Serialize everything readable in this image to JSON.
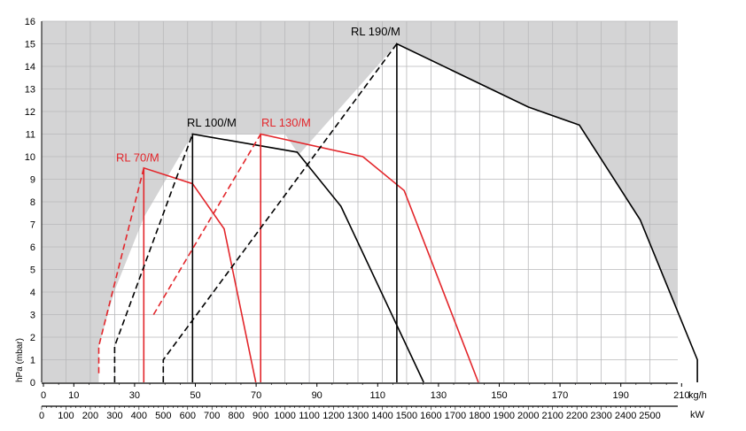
{
  "chart_data": {
    "type": "line",
    "ylabel": "hPa (mbar)",
    "y_ticks": [
      "0",
      "1",
      "2",
      "3",
      "4",
      "5",
      "6",
      "7",
      "8",
      "9",
      "10",
      "11",
      "12",
      "13",
      "14",
      "15",
      "16"
    ],
    "ylim": [
      0,
      16
    ],
    "x_top_unit": "kg/h",
    "x_top_ticks": [
      "0",
      "10",
      "30",
      "50",
      "70",
      "90",
      "110",
      "130",
      "150",
      "170",
      "190",
      "210"
    ],
    "x_bottom_unit": "kW",
    "x_bottom_ticks": [
      "0",
      "100",
      "200",
      "300",
      "400",
      "500",
      "600",
      "700",
      "800",
      "900",
      "1000",
      "1100",
      "1200",
      "1300",
      "1400",
      "1500",
      "1600",
      "1700",
      "1800",
      "1900",
      "2000",
      "2100",
      "2200",
      "2300",
      "2400",
      "2500"
    ],
    "xlim_kw": [
      0,
      2500
    ],
    "grid": true,
    "colors": {
      "black": "#000000",
      "red": "#e3262b",
      "background": "#d4d4d5"
    },
    "series": [
      {
        "name": "RL 70/M",
        "color": "#e3262b",
        "dashed": [
          [
            235,
            0.4
          ],
          [
            235,
            1.6
          ],
          [
            420,
            9.5
          ]
        ],
        "solid": [
          [
            420,
            9.5
          ],
          [
            420,
            0
          ],
          [
            420,
            9.5
          ],
          [
            620,
            8.8
          ],
          [
            750,
            6.8
          ],
          [
            880,
            0
          ]
        ]
      },
      {
        "name": "RL 100/M",
        "color": "#000000",
        "dashed": [
          [
            300,
            0
          ],
          [
            300,
            1.6
          ],
          [
            620,
            11
          ]
        ],
        "solid": [
          [
            620,
            11
          ],
          [
            620,
            0
          ],
          [
            620,
            11
          ],
          [
            1050,
            10.2
          ],
          [
            1230,
            7.8
          ],
          [
            1570,
            0
          ]
        ]
      },
      {
        "name": "RL 130/M",
        "color": "#e3262b",
        "dashed": [
          [
            460,
            3
          ],
          [
            900,
            11
          ]
        ],
        "solid": [
          [
            900,
            11
          ],
          [
            900,
            0
          ],
          [
            900,
            11
          ],
          [
            1320,
            10
          ],
          [
            1490,
            8.5
          ],
          [
            1795,
            0
          ]
        ]
      },
      {
        "name": "RL 190/M",
        "color": "#000000",
        "dashed": [
          [
            500,
            0
          ],
          [
            500,
            1
          ],
          [
            1460,
            15
          ]
        ],
        "solid": [
          [
            1460,
            15
          ],
          [
            1460,
            0
          ],
          [
            1460,
            15
          ],
          [
            2000,
            12.2
          ],
          [
            2210,
            11.4
          ],
          [
            2460,
            7.2
          ],
          [
            2695,
            1
          ],
          [
            2695,
            0
          ]
        ]
      }
    ]
  }
}
